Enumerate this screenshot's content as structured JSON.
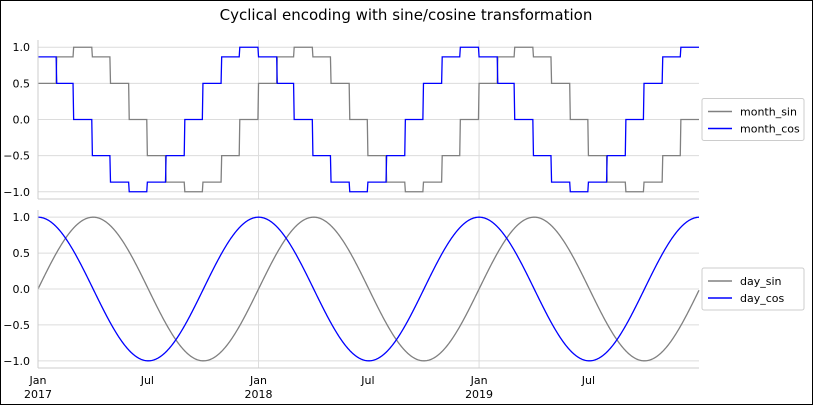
{
  "chart_data": {
    "type": "line",
    "title": "Cyclical encoding with sine/cosine transformation",
    "x_range": [
      "2017-01-01",
      "2019-12-31"
    ],
    "x_tick_labels": [
      {
        "date": "2017-01-01",
        "label": "Jan",
        "year": "2017"
      },
      {
        "date": "2017-07-01",
        "label": "Jul",
        "year": ""
      },
      {
        "date": "2018-01-01",
        "label": "Jan",
        "year": "2018"
      },
      {
        "date": "2018-07-01",
        "label": "Jul",
        "year": ""
      },
      {
        "date": "2019-01-01",
        "label": "Jan",
        "year": "2019"
      },
      {
        "date": "2019-07-01",
        "label": "Jul",
        "year": ""
      }
    ],
    "grid": true,
    "legend_position": "right",
    "panels": [
      {
        "ylim": [
          -1.1,
          1.1
        ],
        "y_ticks": [
          "1.0",
          "0.5",
          "0.0",
          "−0.5",
          "−1.0"
        ],
        "y_tick_values": [
          1.0,
          0.5,
          0.0,
          -0.5,
          -1.0
        ],
        "series": [
          {
            "name": "month_sin",
            "color": "#808080",
            "monthly_values": [
              0.5,
              0.866,
              1.0,
              0.866,
              0.5,
              0.0,
              -0.5,
              -0.866,
              -1.0,
              -0.866,
              -0.5,
              0.0
            ]
          },
          {
            "name": "month_cos",
            "color": "#0000ff",
            "monthly_values": [
              0.866,
              0.5,
              0.0,
              -0.5,
              -0.866,
              -1.0,
              -0.866,
              -0.5,
              0.0,
              0.5,
              0.866,
              1.0
            ]
          }
        ]
      },
      {
        "ylim": [
          -1.1,
          1.1
        ],
        "y_ticks": [
          "1.0",
          "0.5",
          "0.0",
          "−0.5",
          "−1.0"
        ],
        "y_tick_values": [
          1.0,
          0.5,
          0.0,
          -0.5,
          -1.0
        ],
        "series": [
          {
            "name": "day_sin",
            "color": "#808080",
            "formula": "sin(2*pi*day_of_year/365)"
          },
          {
            "name": "day_cos",
            "color": "#0000ff",
            "formula": "cos(2*pi*day_of_year/365)"
          }
        ]
      }
    ]
  }
}
